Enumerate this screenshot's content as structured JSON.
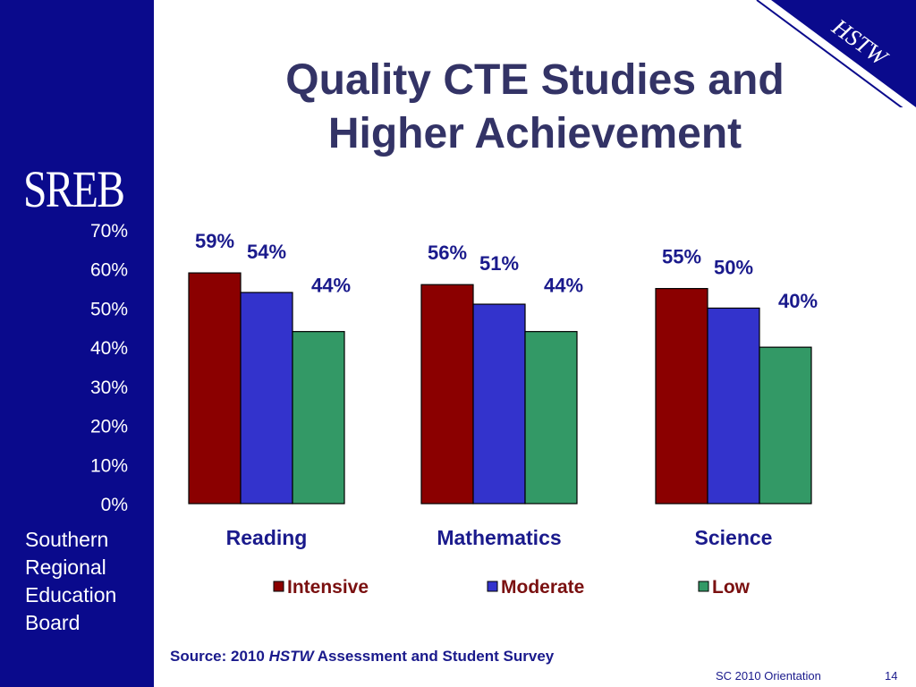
{
  "logo": "SREB",
  "org_name": [
    "Southern",
    "Regional",
    "Education",
    "Board"
  ],
  "badge": "HSTW",
  "title": [
    "Quality CTE Studies and",
    "Higher Achievement"
  ],
  "source": {
    "prefix": "Source: 2010 ",
    "emph": "HSTW",
    "suffix": " Assessment and Student Survey"
  },
  "footer": {
    "label": "SC 2010 Orientation",
    "page": "14"
  },
  "colors": {
    "sidebar": "#0a0a8c",
    "title": "#333366",
    "intensive": "#8b0000",
    "moderate": "#3333cc",
    "low": "#339966"
  },
  "chart_data": {
    "type": "bar",
    "title": "",
    "xlabel": "",
    "ylabel": "",
    "categories": [
      "Reading",
      "Mathematics",
      "Science"
    ],
    "series": [
      {
        "name": "Intensive",
        "values": [
          59,
          56,
          55
        ],
        "labels": [
          "59%",
          "56%",
          "55%"
        ],
        "color": "#8b0000"
      },
      {
        "name": "Moderate",
        "values": [
          54,
          51,
          50
        ],
        "labels": [
          "54%",
          "51%",
          "50%"
        ],
        "color": "#3333cc"
      },
      {
        "name": "Low",
        "values": [
          44,
          44,
          40
        ],
        "labels": [
          "44%",
          "44%",
          "40%"
        ],
        "color": "#339966"
      }
    ],
    "yticks": [
      "0%",
      "10%",
      "20%",
      "30%",
      "40%",
      "50%",
      "60%",
      "70%"
    ],
    "ylim": [
      0,
      70
    ],
    "grid": false,
    "legend_position": "bottom"
  }
}
